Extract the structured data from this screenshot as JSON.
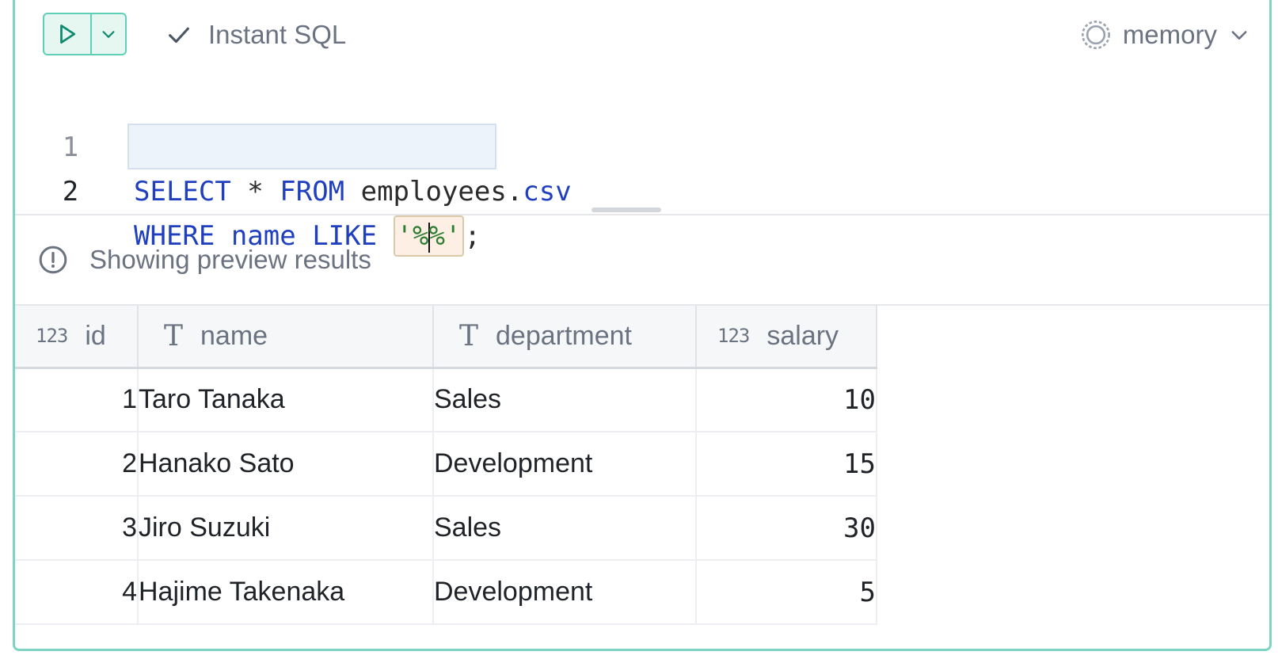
{
  "toolbar": {
    "instant_sql_label": "Instant SQL",
    "database_label": "memory"
  },
  "editor": {
    "lines": [
      {
        "number": "1",
        "keyword1": "SELECT",
        "star": " * ",
        "keyword2": "FROM",
        "table": " employees.",
        "ext": "csv"
      },
      {
        "number": "2",
        "keyword1": "WHERE",
        "column": " name ",
        "keyword2": "LIKE",
        "string_open": "'%",
        "string_close": "%'",
        "terminator": ";"
      }
    ]
  },
  "notice": {
    "text": "Showing preview results"
  },
  "results": {
    "columns": [
      {
        "name": "id",
        "type": "123"
      },
      {
        "name": "name",
        "type": "T"
      },
      {
        "name": "department",
        "type": "T"
      },
      {
        "name": "salary",
        "type": "123"
      }
    ],
    "rows": [
      {
        "id": "1",
        "name": "Taro Tanaka",
        "department": "Sales",
        "salary": "10"
      },
      {
        "id": "2",
        "name": "Hanako Sato",
        "department": "Development",
        "salary": "15"
      },
      {
        "id": "3",
        "name": "Jiro Suzuki",
        "department": "Sales",
        "salary": "30"
      },
      {
        "id": "4",
        "name": "Hajime Takenaka",
        "department": "Development",
        "salary": "5"
      }
    ]
  },
  "colors": {
    "accent": "#5fcfb6",
    "keyword": "#1f3fbf",
    "string": "#2e7d32"
  }
}
